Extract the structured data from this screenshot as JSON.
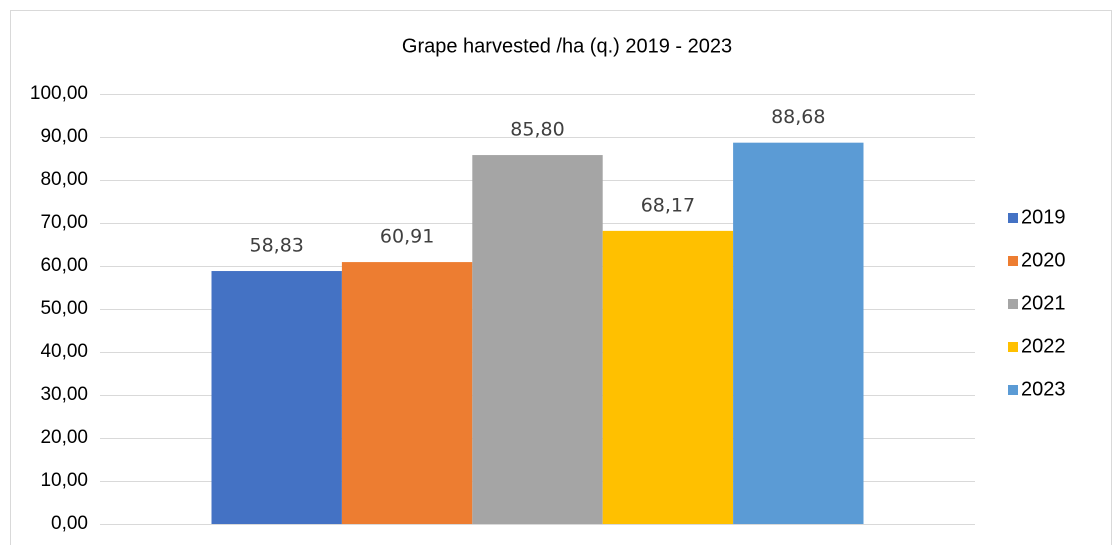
{
  "chart_data": {
    "type": "bar",
    "title": "Grape harvested /ha (q.) 2019 - 2023",
    "categories": [
      null
    ],
    "series": [
      {
        "name": "2019",
        "color": "#4472c4",
        "values": [
          58.83
        ],
        "value_labels": [
          "58,83"
        ]
      },
      {
        "name": "2020",
        "color": "#ed7d31",
        "values": [
          60.91
        ],
        "value_labels": [
          "60,91"
        ]
      },
      {
        "name": "2021",
        "color": "#a5a5a5",
        "values": [
          85.8
        ],
        "value_labels": [
          "85,80"
        ]
      },
      {
        "name": "2022",
        "color": "#ffc000",
        "values": [
          68.17
        ],
        "value_labels": [
          "68,17"
        ]
      },
      {
        "name": "2023",
        "color": "#5b9bd5",
        "values": [
          88.68
        ],
        "value_labels": [
          "88,68"
        ]
      }
    ],
    "ylim": [
      0,
      100
    ],
    "yticks": [
      {
        "value": 0,
        "label": "0,00"
      },
      {
        "value": 10,
        "label": "10,00"
      },
      {
        "value": 20,
        "label": "20,00"
      },
      {
        "value": 30,
        "label": "30,00"
      },
      {
        "value": 40,
        "label": "40,00"
      },
      {
        "value": 50,
        "label": "50,00"
      },
      {
        "value": 60,
        "label": "60,00"
      },
      {
        "value": 70,
        "label": "70,00"
      },
      {
        "value": 80,
        "label": "80,00"
      },
      {
        "value": 90,
        "label": "90,00"
      },
      {
        "value": 100,
        "label": "100,00"
      }
    ],
    "grid": true,
    "legend": "right"
  }
}
